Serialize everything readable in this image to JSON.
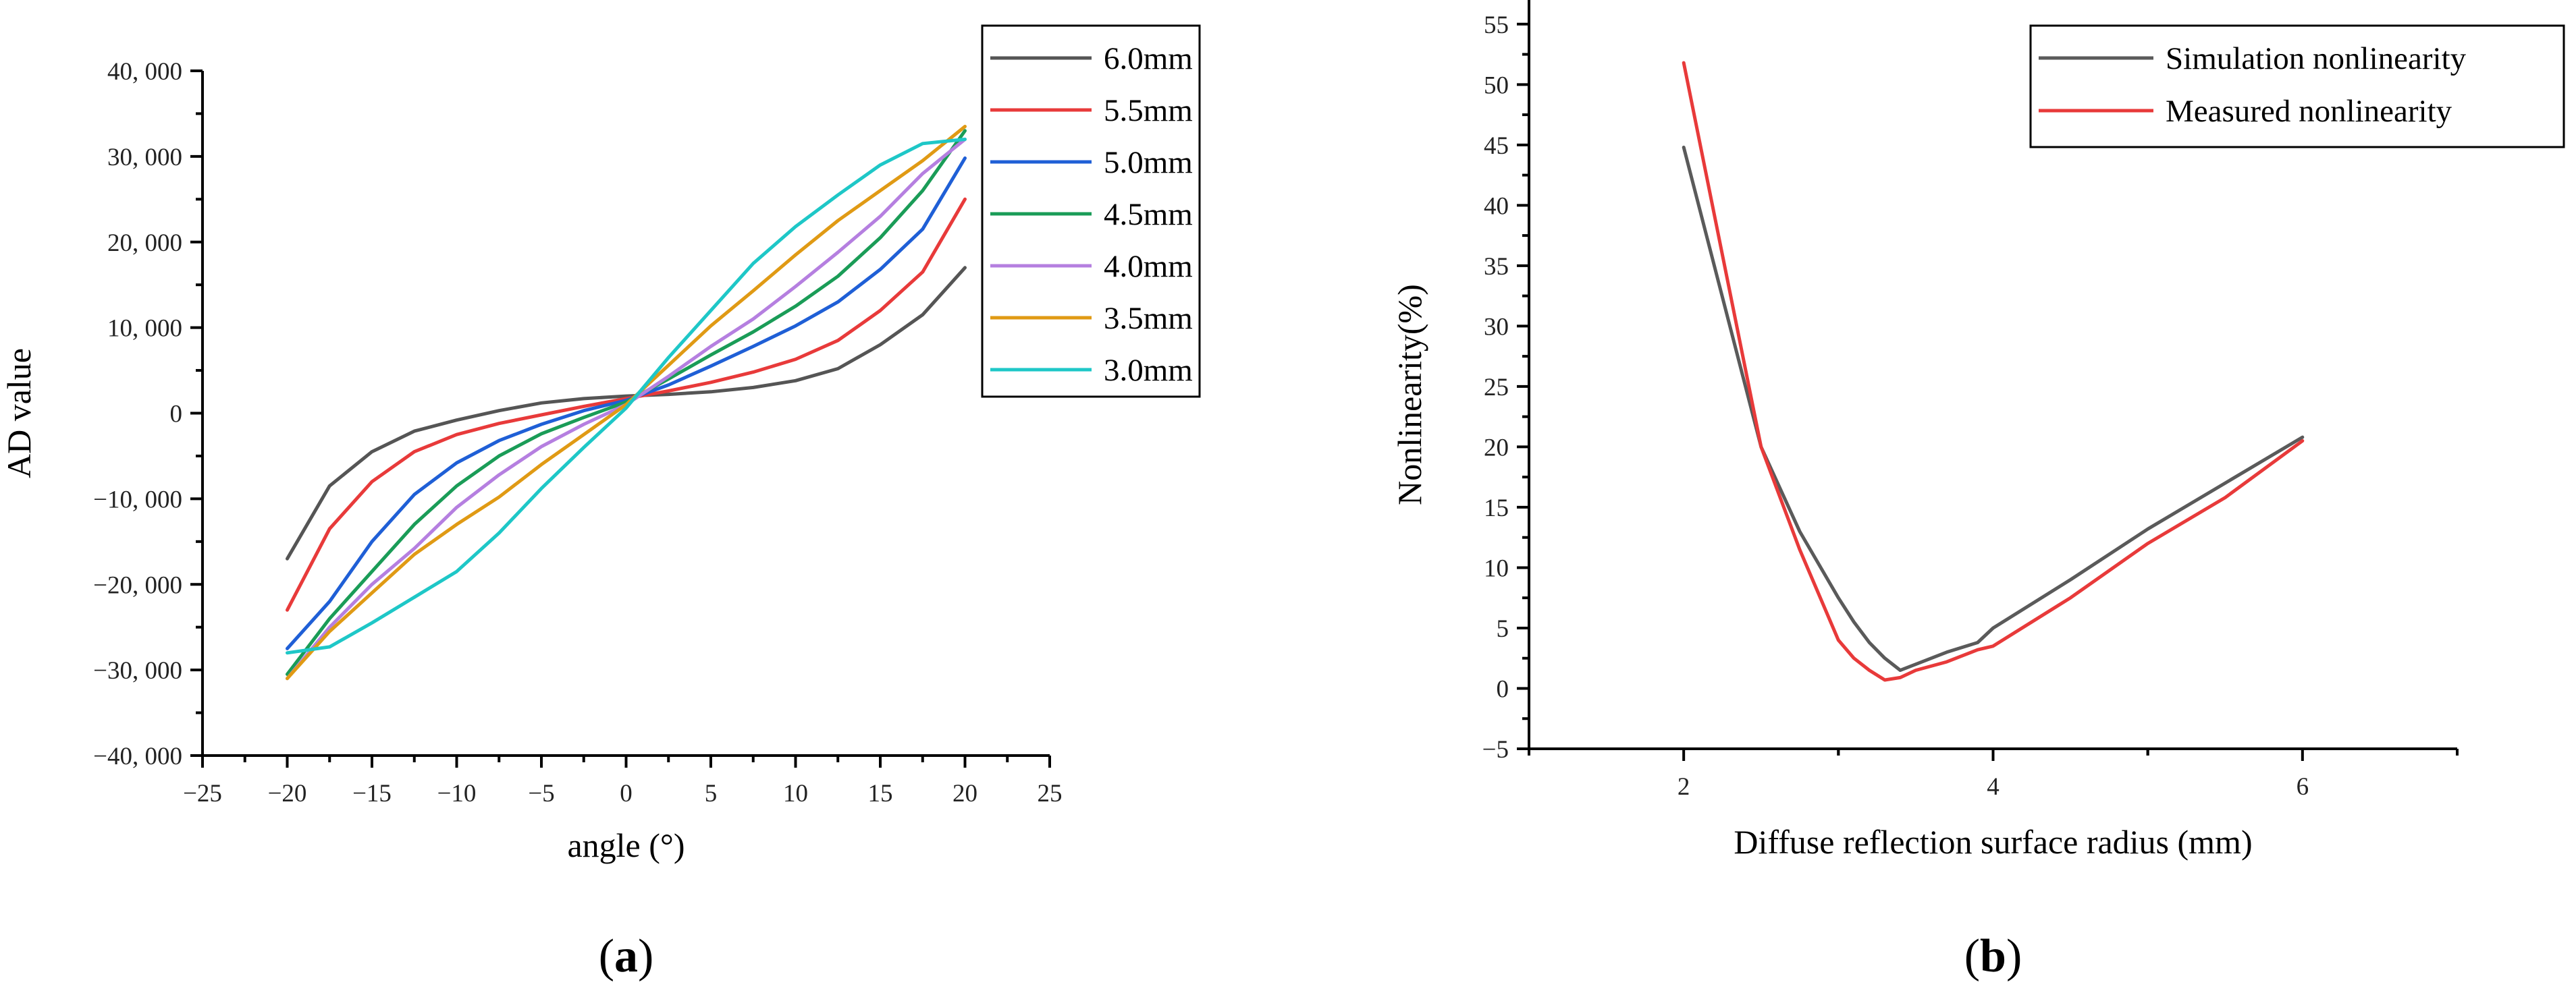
{
  "chart_data": [
    {
      "type": "line",
      "panel_label": "(a)",
      "panel_letter": "a",
      "xlabel": "angle (°)",
      "ylabel": "AD value",
      "xlim": [
        -25,
        25
      ],
      "ylim": [
        -40000,
        40000
      ],
      "x_ticks": [
        -25,
        -20,
        -15,
        -10,
        -5,
        0,
        5,
        10,
        15,
        20,
        25
      ],
      "x_tick_labels": [
        "−25",
        "−20",
        "−15",
        "−10",
        "−5",
        "0",
        "5",
        "10",
        "15",
        "20",
        "25"
      ],
      "y_ticks": [
        -40000,
        -30000,
        -20000,
        -10000,
        0,
        10000,
        20000,
        30000,
        40000
      ],
      "y_tick_labels": [
        "−40, 000",
        "−30, 000",
        "−20, 000",
        "−10, 000",
        "0",
        "10, 000",
        "20, 000",
        "30, 000",
        "40, 000"
      ],
      "legend_position": "top-right",
      "x": [
        -20,
        -17.5,
        -15,
        -12.5,
        -10,
        -7.5,
        -5,
        -2.5,
        0,
        2.5,
        5,
        7.5,
        10,
        12.5,
        15,
        17.5,
        20
      ],
      "series": [
        {
          "name": "6.0mm",
          "color": "#555555",
          "values": [
            -17000,
            -8500,
            -4500,
            -2100,
            -800,
            300,
            1200,
            1700,
            2000,
            2200,
            2500,
            3000,
            3800,
            5200,
            8000,
            11500,
            17000
          ]
        },
        {
          "name": "5.5mm",
          "color": "#e83a3a",
          "values": [
            -23000,
            -13500,
            -8000,
            -4500,
            -2500,
            -1200,
            -200,
            800,
            1700,
            2600,
            3600,
            4800,
            6300,
            8500,
            12000,
            16500,
            25000
          ]
        },
        {
          "name": "5.0mm",
          "color": "#1f5fd6",
          "values": [
            -27500,
            -22000,
            -15000,
            -9500,
            -5800,
            -3200,
            -1300,
            300,
            1500,
            3300,
            5500,
            7800,
            10200,
            13000,
            16800,
            21500,
            29800
          ]
        },
        {
          "name": "4.5mm",
          "color": "#1a9c57",
          "values": [
            -30500,
            -24000,
            -18500,
            -13000,
            -8500,
            -5000,
            -2400,
            -500,
            1300,
            4000,
            6800,
            9500,
            12500,
            16000,
            20500,
            26000,
            33000
          ]
        },
        {
          "name": "4.0mm",
          "color": "#b57fe0",
          "values": [
            -31000,
            -25000,
            -20000,
            -15800,
            -11000,
            -7200,
            -3900,
            -1300,
            1000,
            4300,
            7800,
            11000,
            14800,
            18800,
            23000,
            28000,
            32000
          ]
        },
        {
          "name": "3.5mm",
          "color": "#e09a14",
          "values": [
            -31000,
            -25500,
            -21000,
            -16500,
            -13000,
            -9800,
            -6000,
            -2500,
            1000,
            5600,
            10200,
            14300,
            18500,
            22500,
            26000,
            29500,
            33500
          ]
        },
        {
          "name": "3.0mm",
          "color": "#1ec7c7",
          "values": [
            -28000,
            -27300,
            -24500,
            -21500,
            -18500,
            -14000,
            -8800,
            -4000,
            600,
            6500,
            12000,
            17500,
            21800,
            25500,
            29000,
            31500,
            32000
          ]
        }
      ]
    },
    {
      "type": "line",
      "panel_label": "(b)",
      "panel_letter": "b",
      "xlabel": "Diffuse reflection surface radius (mm)",
      "ylabel": "Nonlinearity(%)",
      "xlim": [
        1,
        7
      ],
      "ylim": [
        -5,
        57
      ],
      "x_ticks": [
        2,
        4,
        6
      ],
      "x_tick_labels": [
        "2",
        "4",
        "6"
      ],
      "y_ticks": [
        -5,
        0,
        5,
        10,
        15,
        20,
        25,
        30,
        35,
        40,
        45,
        50,
        55
      ],
      "y_tick_labels": [
        "−5",
        "0",
        "5",
        "10",
        "15",
        "20",
        "25",
        "30",
        "35",
        "40",
        "45",
        "50",
        "55"
      ],
      "legend_position": "top-right",
      "series": [
        {
          "name": "Simulation nonlinearity",
          "color": "#5a5a5a",
          "x": [
            2.0,
            2.5,
            2.75,
            3.0,
            3.1,
            3.2,
            3.3,
            3.4,
            3.5,
            3.7,
            3.9,
            4.0,
            4.5,
            5.0,
            5.5,
            6.0
          ],
          "values": [
            44.8,
            20.0,
            13.0,
            7.5,
            5.5,
            3.8,
            2.5,
            1.5,
            2.0,
            3.0,
            3.8,
            5.0,
            9.0,
            13.2,
            17.0,
            20.8
          ]
        },
        {
          "name": "Measured nonlinearity",
          "color": "#e83a3a",
          "x": [
            2.0,
            2.5,
            2.75,
            3.0,
            3.1,
            3.2,
            3.3,
            3.4,
            3.5,
            3.7,
            3.9,
            4.0,
            4.5,
            5.0,
            5.5,
            6.0
          ],
          "values": [
            51.8,
            20.0,
            11.5,
            4.0,
            2.5,
            1.5,
            0.7,
            0.9,
            1.5,
            2.2,
            3.2,
            3.5,
            7.5,
            12.0,
            15.8,
            20.5
          ]
        }
      ]
    }
  ]
}
